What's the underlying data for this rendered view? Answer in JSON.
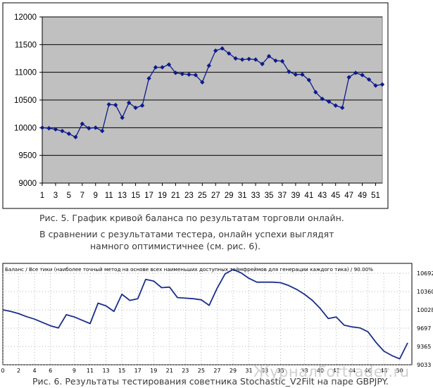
{
  "captions": {
    "fig5": "Рис. 5. График кривой баланса по результатам торговли онлайн.",
    "note_line1": "В сравнении с результатами тестера, онлайн успехи выглядят",
    "note_line2": "намного оптимистичнее (см. рис. 6).",
    "fig6": "Рис. 6. Результаты тестирования советника Stochastic_V2Filt на паре GBPJPY."
  },
  "watermark": "ЖурналFortrader.ru",
  "colors": {
    "plot_bg": "#c0c0c0",
    "series": "#0d1a8c",
    "tester_line": "#1a2f8a",
    "grid": "#000000"
  },
  "chart_data": [
    {
      "type": "line",
      "title": "",
      "xlabel": "",
      "ylabel": "",
      "x_tick_labels": [
        "1",
        "3",
        "5",
        "7",
        "9",
        "11",
        "13",
        "15",
        "17",
        "19",
        "21",
        "23",
        "25",
        "27",
        "29",
        "31",
        "33",
        "35",
        "37",
        "39",
        "41",
        "43",
        "45",
        "47",
        "49",
        "51"
      ],
      "y_tick_labels": [
        "9000",
        "9500",
        "10000",
        "10500",
        "11000",
        "11500",
        "12000"
      ],
      "ylim": [
        9000,
        12000
      ],
      "xlim": [
        1,
        52
      ],
      "grid": "horizontal",
      "legend": "none",
      "marker": "diamond",
      "series": [
        {
          "values": [
            10000,
            9990,
            9970,
            9940,
            9890,
            9830,
            10070,
            9990,
            10000,
            9940,
            10420,
            10410,
            10180,
            10450,
            10360,
            10400,
            10890,
            11090,
            11090,
            11140,
            10990,
            10970,
            10960,
            10950,
            10820,
            11120,
            11390,
            11430,
            11340,
            11250,
            11230,
            11240,
            11230,
            11150,
            11290,
            11210,
            11200,
            11010,
            10960,
            10960,
            10860,
            10640,
            10520,
            10470,
            10400,
            10360,
            10910,
            10990,
            10950,
            10870,
            10760,
            10780
          ]
        }
      ]
    },
    {
      "type": "line",
      "title": "Баланс / Все тики (наиболее точный метод на основе всех наименьших доступных таймфреймов для генерации каждого тика) / 90.00%",
      "xlabel": "",
      "ylabel": "",
      "x_tick_labels": [
        "0",
        "2",
        "4",
        "6",
        "9",
        "11",
        "13",
        "15",
        "17",
        "19",
        "21",
        "23",
        "25",
        "27",
        "29",
        "31",
        "33",
        "35",
        "38",
        "40",
        "42",
        "44",
        "46",
        "48",
        "50"
      ],
      "y_tick_labels": [
        "9033",
        "9365",
        "9697",
        "10028",
        "10360",
        "10692"
      ],
      "ylim": [
        9033,
        10692
      ],
      "xlim": [
        0,
        51
      ],
      "grid": "dotted",
      "legend": "none",
      "series": [
        {
          "values": [
            10028,
            10000,
            9960,
            9905,
            9860,
            9800,
            9740,
            9700,
            9940,
            9900,
            9840,
            9780,
            10150,
            10100,
            10000,
            10310,
            10200,
            10230,
            10580,
            10550,
            10430,
            10440,
            10250,
            10240,
            10230,
            10210,
            10110,
            10420,
            10680,
            10760,
            10700,
            10600,
            10530,
            10530,
            10530,
            10520,
            10470,
            10400,
            10310,
            10200,
            10050,
            9870,
            9900,
            9750,
            9720,
            9700,
            9630,
            9440,
            9280,
            9200,
            9140,
            9430
          ]
        }
      ]
    }
  ]
}
